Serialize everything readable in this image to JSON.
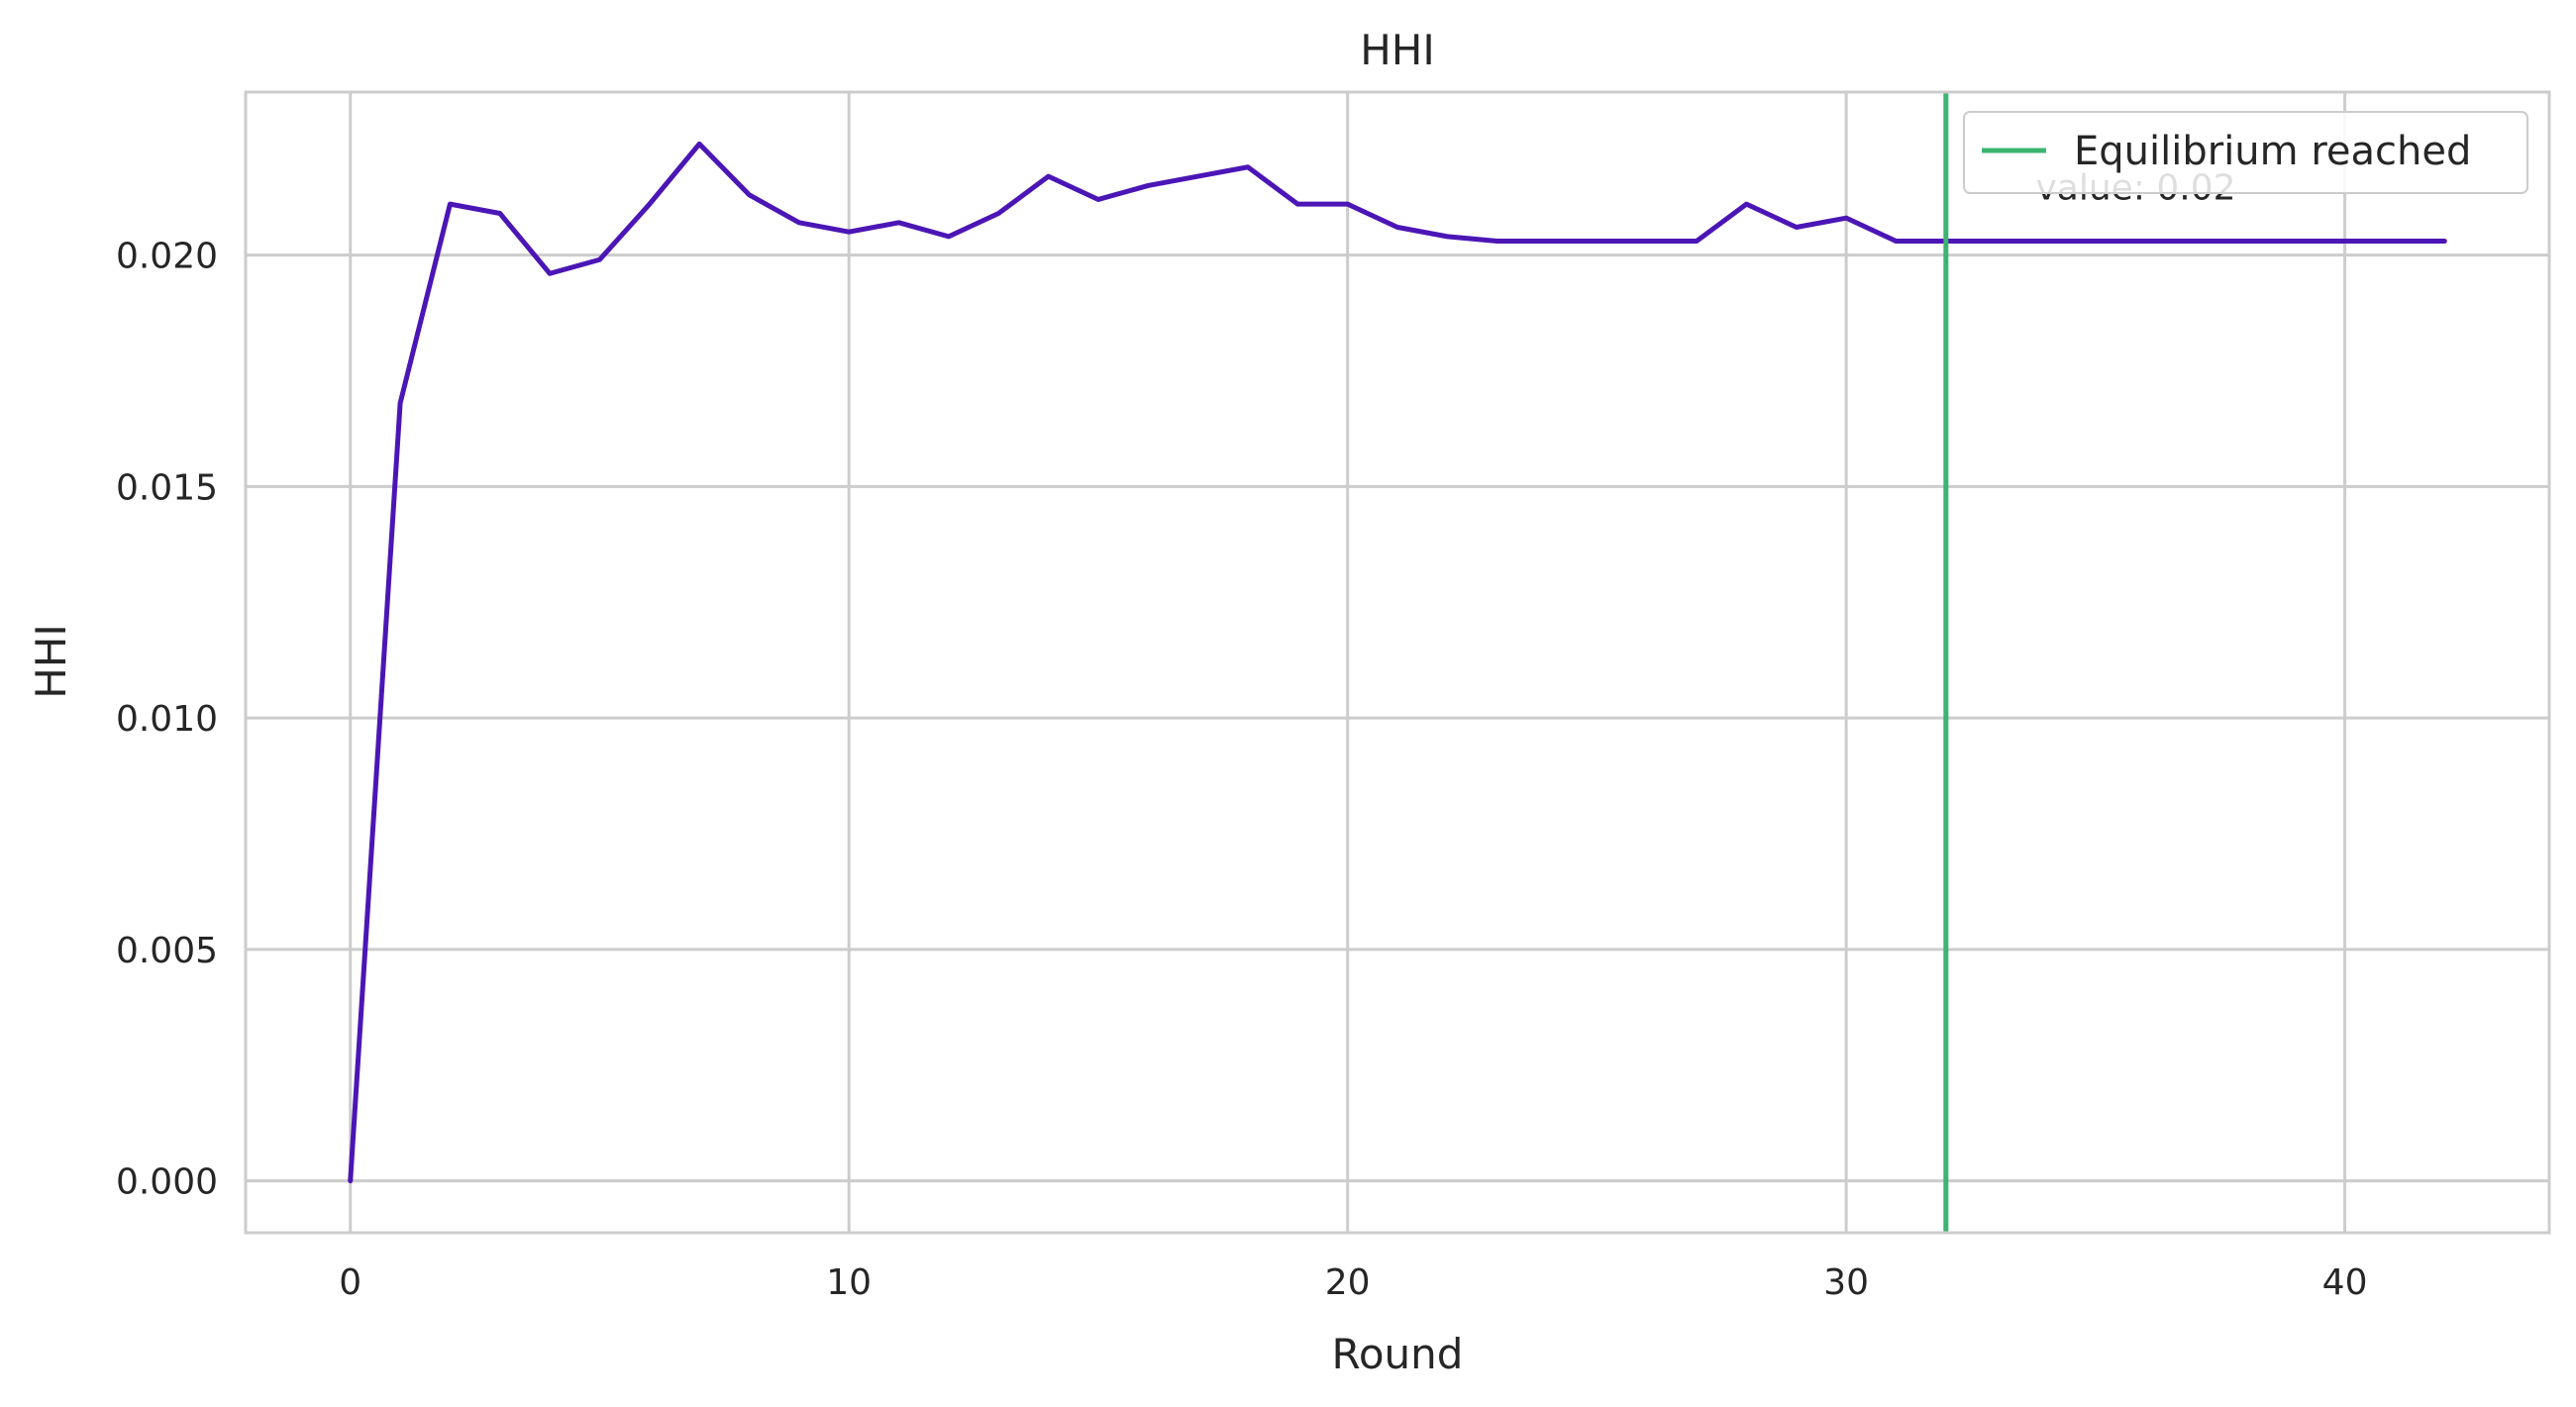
{
  "chart_data": {
    "type": "line",
    "title": "HHI",
    "xlabel": "Round",
    "ylabel": "HHI",
    "xlim": [
      -2.1,
      44.1
    ],
    "ylim": [
      -0.00112,
      0.02352
    ],
    "xticks": [
      0,
      10,
      20,
      30,
      40
    ],
    "xtick_labels": [
      "0",
      "10",
      "20",
      "30",
      "40"
    ],
    "yticks": [
      0.0,
      0.005,
      0.01,
      0.015,
      0.02
    ],
    "ytick_labels": [
      "0.000",
      "0.005",
      "0.010",
      "0.015",
      "0.020"
    ],
    "grid": true,
    "series": [
      {
        "color": "#4b16b5",
        "x": [
          0,
          1,
          2,
          3,
          4,
          5,
          6,
          7,
          8,
          9,
          10,
          11,
          12,
          13,
          14,
          15,
          16,
          17,
          18,
          19,
          20,
          21,
          22,
          23,
          24,
          25,
          26,
          27,
          28,
          29,
          30,
          31,
          32,
          33,
          34,
          35,
          36,
          37,
          38,
          39,
          40,
          41,
          42
        ],
        "y": [
          0.0,
          0.0168,
          0.0211,
          0.0209,
          0.0196,
          0.0199,
          0.0211,
          0.0224,
          0.0213,
          0.0207,
          0.0205,
          0.0207,
          0.0204,
          0.0209,
          0.0217,
          0.0212,
          0.0215,
          0.0217,
          0.0219,
          0.0211,
          0.0211,
          0.0206,
          0.0204,
          0.0203,
          0.0203,
          0.0203,
          0.0203,
          0.0203,
          0.0211,
          0.0206,
          0.0208,
          0.0203,
          0.0203,
          0.0203,
          0.0203,
          0.0203,
          0.0203,
          0.0203,
          0.0203,
          0.0203,
          0.0203,
          0.0203,
          0.0203
        ]
      }
    ],
    "vline": {
      "x": 32,
      "label": "Equilibrium reached",
      "color": "#3cb371"
    },
    "annotation": {
      "text": "value: 0.02",
      "x": 34,
      "y": 0.0212
    },
    "legend": {
      "placement": "top-right",
      "entries": [
        "Equilibrium reached"
      ]
    }
  }
}
